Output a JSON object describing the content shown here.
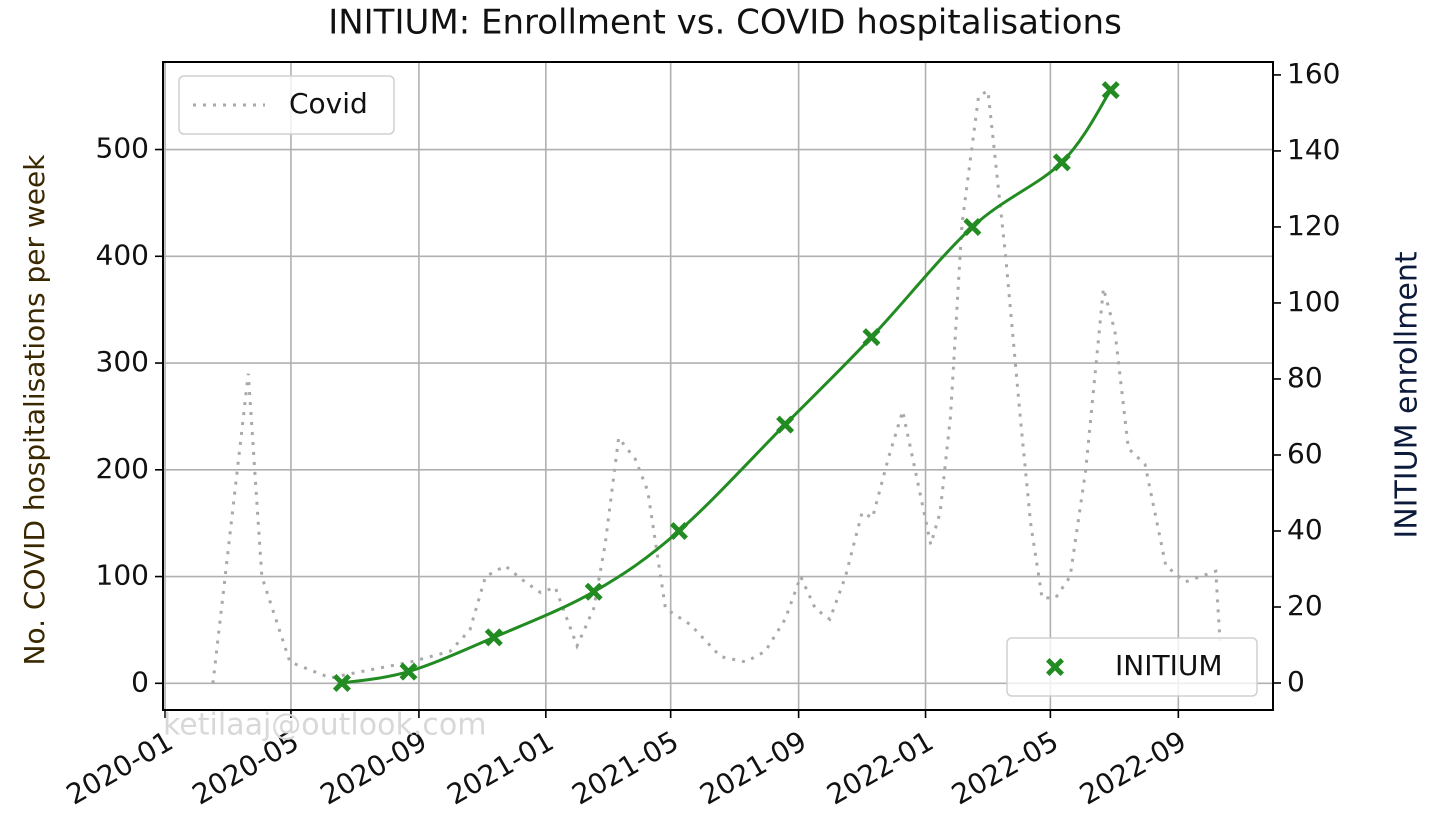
{
  "chart_data": {
    "type": "line",
    "title": "INITIUM: Enrollment vs. COVID hospitalisations",
    "ylabel": "No. COVID hospitalisations per week",
    "y2label": "INITIUM enrollment",
    "annotation": "ketilaaj@outlook.com",
    "xlim": [
      "2019-12-30",
      "2022-12-01"
    ],
    "xticks": [
      "2020-01",
      "2020-05",
      "2020-09",
      "2021-01",
      "2021-05",
      "2021-09",
      "2022-01",
      "2022-05",
      "2022-09"
    ],
    "ylim": [
      -25,
      582
    ],
    "yticks": [
      0,
      100,
      200,
      300,
      400,
      500
    ],
    "y2lim": [
      -7.1,
      163.4
    ],
    "y2ticks": [
      0,
      20,
      40,
      60,
      80,
      100,
      120,
      140,
      160
    ],
    "grid": true,
    "series": [
      {
        "name": "Covid",
        "color": "#a9a9a9",
        "style": "dotted",
        "axis": "y",
        "legend": "upper left",
        "x": [
          "2020-02-16",
          "2020-03-21",
          "2020-04-03",
          "2020-04-30",
          "2020-06-08",
          "2020-06-22",
          "2020-08-24",
          "2020-10-01",
          "2020-10-20",
          "2020-11-04",
          "2020-11-23",
          "2020-12-12",
          "2020-12-27",
          "2021-01-10",
          "2021-01-31",
          "2021-02-16",
          "2021-02-27",
          "2021-03-12",
          "2021-03-28",
          "2021-04-09",
          "2021-04-26",
          "2021-05-20",
          "2021-06-18",
          "2021-07-12",
          "2021-07-31",
          "2021-08-19",
          "2021-09-03",
          "2021-09-17",
          "2021-10-01",
          "2021-10-16",
          "2021-11-01",
          "2021-11-11",
          "2021-11-26",
          "2021-12-10",
          "2021-12-22",
          "2022-01-06",
          "2022-01-15",
          "2022-01-25",
          "2022-02-05",
          "2022-02-21",
          "2022-03-02",
          "2022-03-19",
          "2022-04-02",
          "2022-04-12",
          "2022-04-23",
          "2022-05-06",
          "2022-05-20",
          "2022-06-04",
          "2022-06-21",
          "2022-07-02",
          "2022-07-15",
          "2022-07-31",
          "2022-08-20",
          "2022-09-08",
          "2022-09-22",
          "2022-10-07",
          "2022-10-11"
        ],
        "values": [
          0,
          290,
          100,
          20,
          5,
          8,
          20,
          30,
          50,
          100,
          110,
          95,
          85,
          90,
          35,
          70,
          130,
          230,
          210,
          180,
          70,
          55,
          25,
          20,
          30,
          60,
          100,
          70,
          60,
          100,
          160,
          155,
          210,
          255,
          200,
          130,
          160,
          250,
          430,
          550,
          555,
          400,
          250,
          150,
          80,
          80,
          100,
          200,
          370,
          330,
          220,
          205,
          110,
          95,
          100,
          105,
          40
        ]
      },
      {
        "name": "INITIUM",
        "color": "#228b22",
        "style": "solid",
        "marker": "X",
        "axis": "y2",
        "legend": "lower right",
        "x": [
          "2020-06-19",
          "2020-08-22",
          "2020-11-12",
          "2021-02-16",
          "2021-05-09",
          "2021-08-19",
          "2021-11-10",
          "2022-02-15",
          "2022-05-12",
          "2022-06-28"
        ],
        "values": [
          0,
          3,
          12,
          24,
          40,
          68,
          91,
          120,
          137,
          156
        ]
      }
    ]
  }
}
